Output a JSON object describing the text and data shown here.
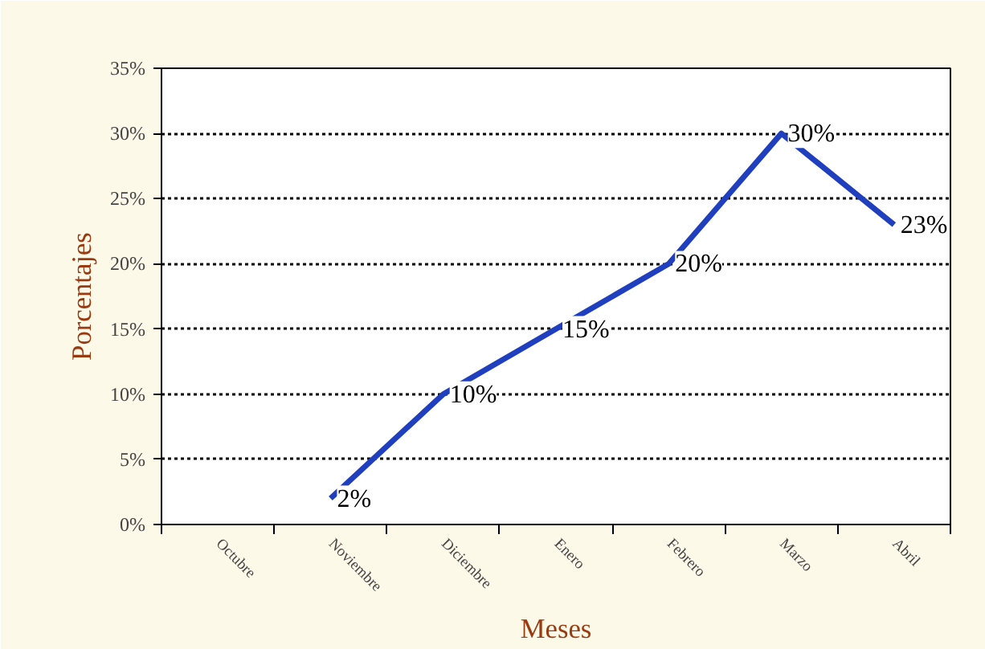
{
  "chart_data": {
    "type": "line",
    "xlabel": "Meses",
    "ylabel": "Porcentajes",
    "categories": [
      "Octubre",
      "Noviembre",
      "Diciembre",
      "Enero",
      "Febrero",
      "Marzo",
      "Abril"
    ],
    "series": [
      {
        "color": "#1f3fbf",
        "values": [
          null,
          2,
          10,
          15,
          20,
          30,
          23
        ],
        "value_labels": [
          null,
          "2%",
          "10%",
          "15%",
          "20%",
          "30%",
          "23%"
        ]
      }
    ],
    "ylim": [
      0,
      35
    ],
    "yticks": [
      {
        "value": 0,
        "label": "0%"
      },
      {
        "value": 5,
        "label": "5%"
      },
      {
        "value": 10,
        "label": "10%"
      },
      {
        "value": 15,
        "label": "15%"
      },
      {
        "value": 20,
        "label": "20%"
      },
      {
        "value": 25,
        "label": "25%"
      },
      {
        "value": 30,
        "label": "30%"
      },
      {
        "value": 35,
        "label": "35%"
      }
    ],
    "grid": "y",
    "marker": "none",
    "line_style": "solid"
  }
}
